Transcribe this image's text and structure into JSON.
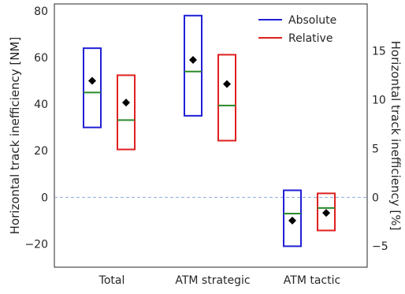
{
  "chart_data": {
    "type": "box",
    "categories": [
      "Total",
      "ATM strategic",
      "ATM tactic"
    ],
    "ylabel_left": "Horizontal track inefficiency [NM]",
    "ylabel_right": "Horizontal track inefficiency [%]",
    "ylim_left": [
      -30,
      83
    ],
    "yticks_left": [
      -20,
      0,
      20,
      40,
      60,
      80
    ],
    "ylim_right": [
      -7.16,
      19.8
    ],
    "yticks_right": [
      -5,
      0,
      5,
      10,
      15
    ],
    "reference_line": {
      "y": 0,
      "style": "dashed",
      "color": "#8fa9d4"
    },
    "grid": false,
    "legend": {
      "position": "top-right"
    },
    "colors": {
      "Absolute": "#1f1fd6",
      "Relative": "#e02020",
      "median": "#2a8a2a",
      "mean": "#000000"
    },
    "series": [
      {
        "name": "Absolute",
        "axis": "left",
        "boxes": [
          {
            "category": "Total",
            "q1": 30,
            "q3": 64,
            "median": 45,
            "mean": 50
          },
          {
            "category": "ATM strategic",
            "q1": 35,
            "q3": 78,
            "median": 54,
            "mean": 59
          },
          {
            "category": "ATM tactic",
            "q1": -21,
            "q3": 3,
            "median": -7,
            "mean": -10
          }
        ]
      },
      {
        "name": "Relative",
        "axis": "right",
        "boxes": [
          {
            "category": "Total",
            "q1": 4.9,
            "q3": 12.5,
            "median": 7.9,
            "mean": 9.7
          },
          {
            "category": "ATM strategic",
            "q1": 5.8,
            "q3": 14.6,
            "median": 9.4,
            "mean": 11.6
          },
          {
            "category": "ATM tactic",
            "q1": -3.4,
            "q3": 0.4,
            "median": -1.1,
            "mean": -1.6
          }
        ]
      }
    ]
  }
}
